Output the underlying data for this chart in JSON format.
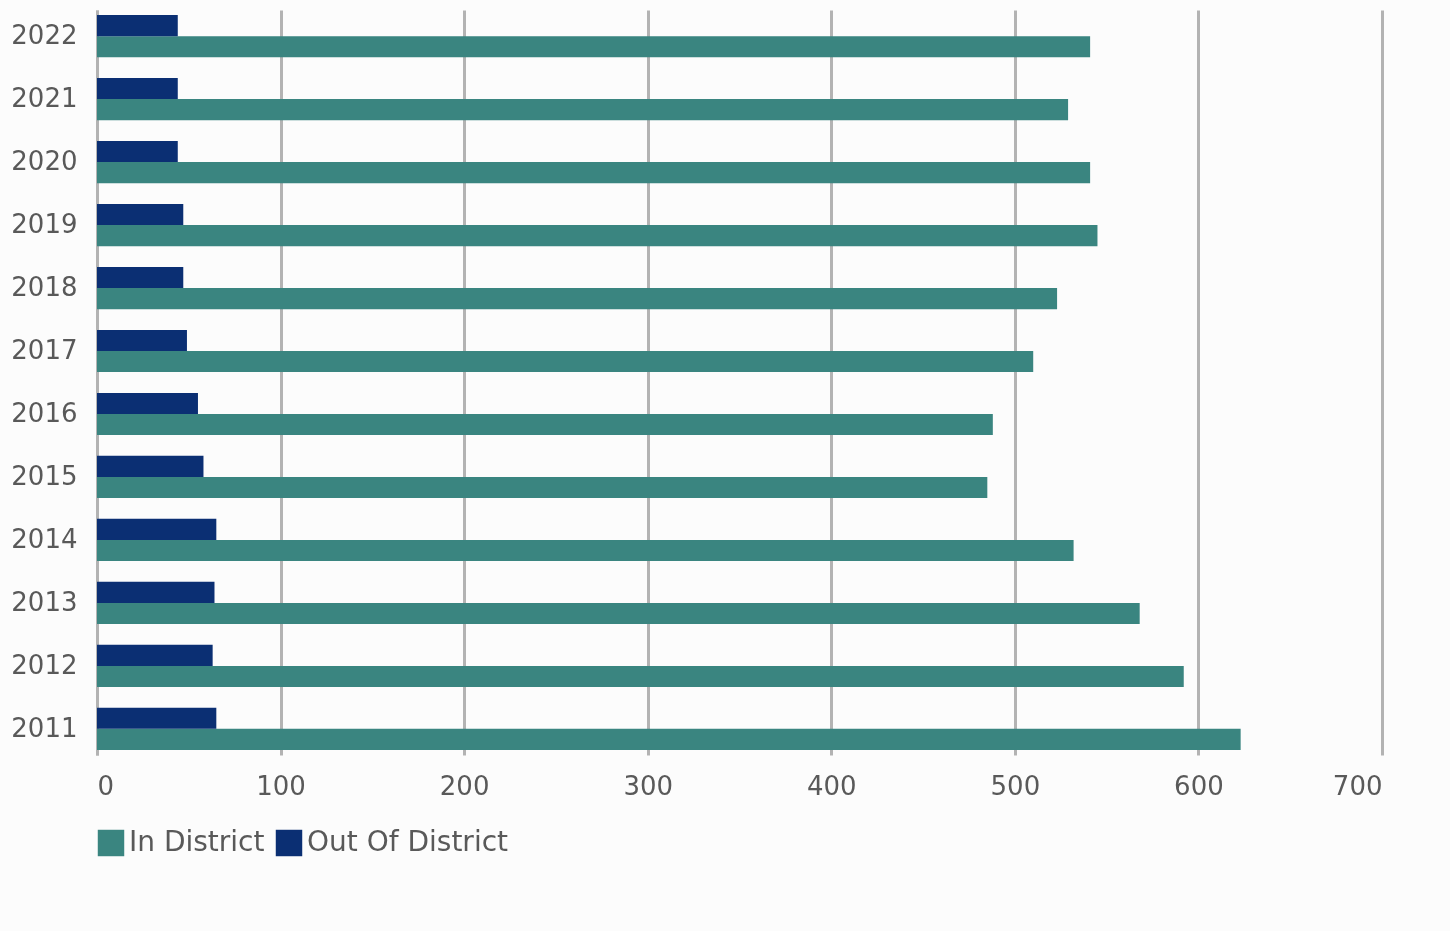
{
  "chart_data": {
    "type": "bar",
    "orientation": "horizontal",
    "categories": [
      "2022",
      "2021",
      "2020",
      "2019",
      "2018",
      "2017",
      "2016",
      "2015",
      "2014",
      "2013",
      "2012",
      "2011"
    ],
    "series": [
      {
        "name": "In District",
        "color": "#3a8580",
        "values": [
          541,
          529,
          541,
          545,
          523,
          510,
          488,
          485,
          532,
          568,
          592,
          623
        ]
      },
      {
        "name": "Out Of District",
        "color": "#0b2f73",
        "values": [
          44,
          44,
          44,
          47,
          47,
          49,
          55,
          58,
          65,
          64,
          63,
          65
        ]
      }
    ],
    "xlim": [
      0,
      700
    ],
    "xticks": [
      0,
      100,
      200,
      300,
      400,
      500,
      600,
      700
    ],
    "grid": "x",
    "legend": "bottom"
  }
}
